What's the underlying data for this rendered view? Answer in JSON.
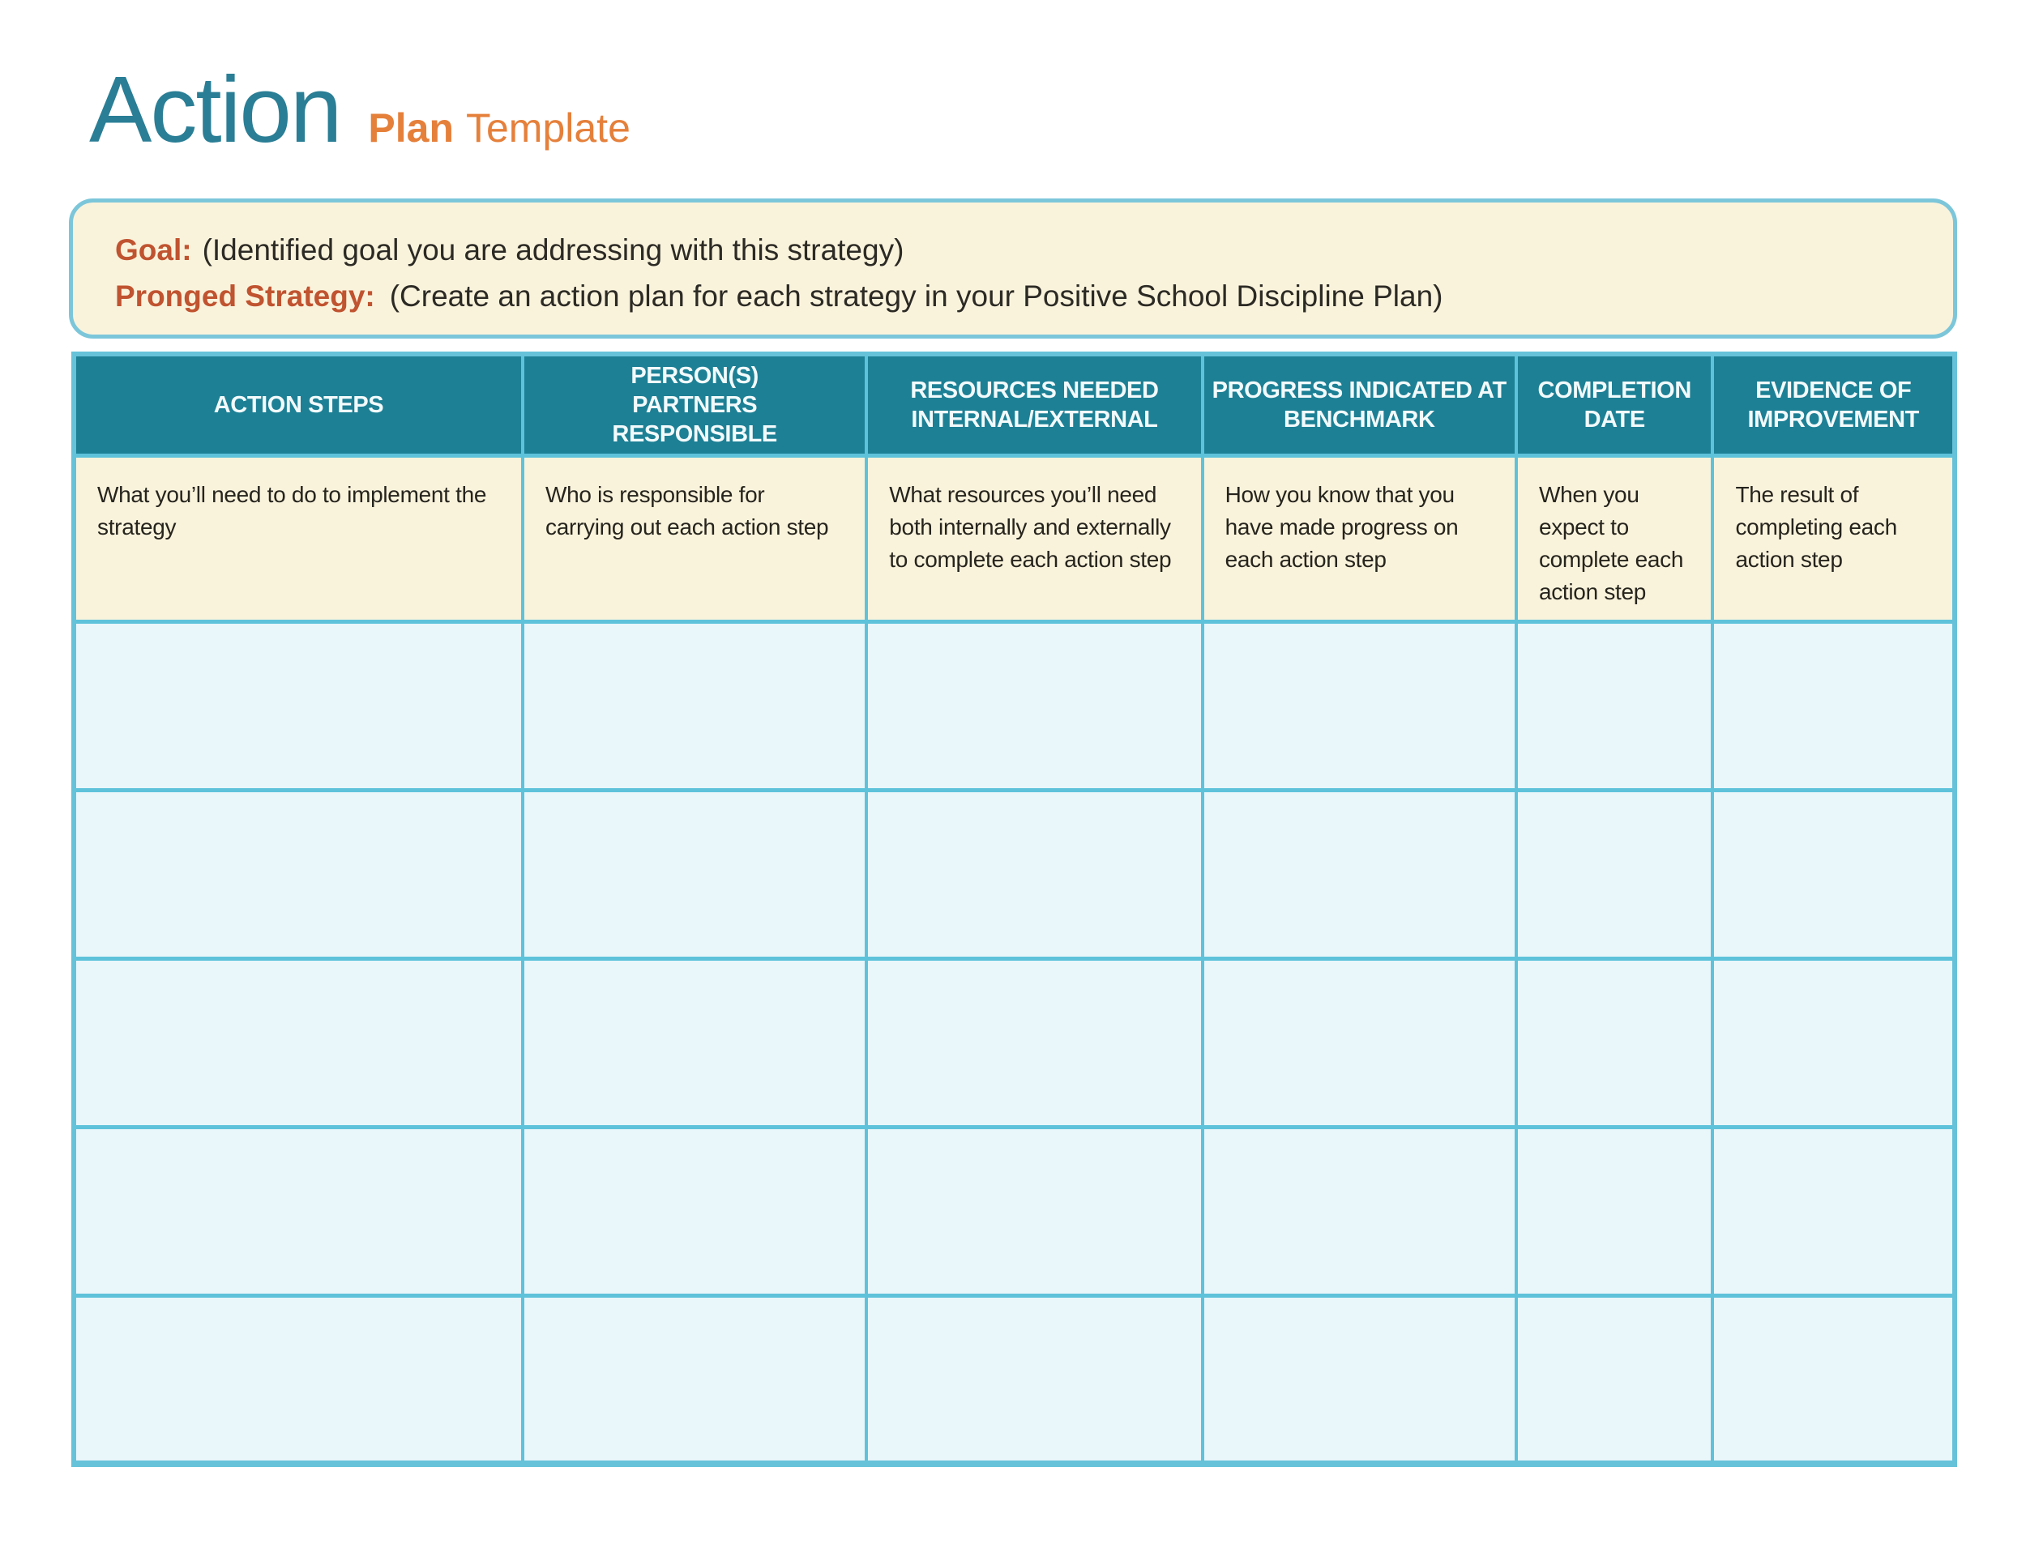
{
  "title": {
    "primary": "Action",
    "secondary_bold": "Plan",
    "secondary_regular": "Template"
  },
  "goal_box": {
    "goal_label": "Goal:",
    "goal_text": "(Identified goal you are addressing with this strategy)",
    "strategy_label": "Pronged Strategy:",
    "strategy_text": "(Create an action plan for each strategy in your Positive School Discipline Plan)"
  },
  "table": {
    "columns": [
      {
        "header": "ACTION STEPS",
        "description": "What you’ll need to do to implement the strategy"
      },
      {
        "header": "PERSON(S)\nPARTNERS\nRESPONSIBLE",
        "description": "Who is responsible for carrying out each action step"
      },
      {
        "header": "RESOURCES NEEDED\nINTERNAL/EXTERNAL",
        "description": "What resources you’ll need both internally and externally to complete each action step"
      },
      {
        "header": "PROGRESS INDICATED AT\nBENCHMARK",
        "description": "How you know that you have made progress on each action step"
      },
      {
        "header": "COMPLETION\nDATE",
        "description": "When you expect to complete each action step"
      },
      {
        "header": "EVIDENCE OF\nIMPROVEMENT",
        "description": "The result of completing each action step"
      }
    ],
    "empty_row_count": 5
  },
  "colors": {
    "title_teal": "#2a7e95",
    "title_orange": "#e5803b",
    "label_rust": "#c05330",
    "header_teal": "#1d8095",
    "header_text": "#f2fafb",
    "cream_fill": "#faf3dc",
    "grid_blue": "#5ec3da",
    "outer_border_blue": "#66c2d9",
    "goal_border_blue": "#7cc6da",
    "empty_row_blue": "#e9f6fa",
    "body_text": "#26241d"
  }
}
